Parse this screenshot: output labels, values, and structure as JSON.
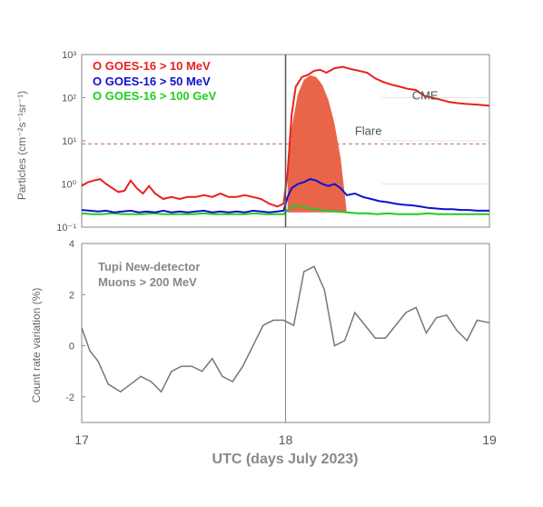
{
  "chart_data": [
    {
      "type": "line",
      "panel": "top",
      "ylabel": "Particles (cm⁻²s⁻¹sr⁻¹)",
      "yscale": "log",
      "ylim": [
        0.1,
        1000
      ],
      "xlim": [
        17,
        19
      ],
      "ytick_labels": [
        "10⁻¹",
        "10⁰",
        "10¹",
        "10²",
        "10³"
      ],
      "ytick_values": [
        0.1,
        1,
        10,
        100,
        1000
      ],
      "legend": {
        "position": "top-left",
        "entries": [
          "O GOES-16 > 10 MeV",
          "O GOES-16 > 50 MeV",
          "O GOES-16 > 100 GeV"
        ]
      },
      "annotations": [
        {
          "text": "CME",
          "x": 18.62,
          "y": 90
        },
        {
          "text": "Flare",
          "x": 18.34,
          "y": 8.5
        }
      ],
      "threshold": {
        "y": 8.5,
        "style": "dashed"
      },
      "event_line_x": 18.0,
      "colors": {
        "series_10": "#e8211c",
        "series_50": "#1010d0",
        "series_100": "#22cc22",
        "flare_fill": "#e8654a"
      },
      "series": [
        {
          "legend_index": 0,
          "x": [
            17.0,
            17.03,
            17.06,
            17.09,
            17.12,
            17.15,
            17.18,
            17.21,
            17.24,
            17.27,
            17.3,
            17.33,
            17.36,
            17.4,
            17.44,
            17.48,
            17.52,
            17.56,
            17.6,
            17.64,
            17.68,
            17.72,
            17.76,
            17.8,
            17.84,
            17.88,
            17.92,
            17.96,
            17.99,
            18.01,
            18.03,
            18.05,
            18.08,
            18.11,
            18.14,
            18.17,
            18.2,
            18.24,
            18.28,
            18.32,
            18.36,
            18.4,
            18.44,
            18.48,
            18.52,
            18.56,
            18.6,
            18.64,
            18.68,
            18.72,
            18.76,
            18.8,
            18.84,
            18.88,
            18.92,
            18.96,
            19.0
          ],
          "values": [
            0.9,
            1.1,
            1.2,
            1.3,
            1.0,
            0.8,
            0.65,
            0.7,
            1.2,
            0.8,
            0.6,
            0.9,
            0.6,
            0.45,
            0.5,
            0.45,
            0.5,
            0.5,
            0.55,
            0.5,
            0.6,
            0.5,
            0.5,
            0.55,
            0.5,
            0.45,
            0.35,
            0.3,
            0.35,
            1.8,
            40,
            180,
            300,
            340,
            420,
            440,
            380,
            480,
            520,
            460,
            420,
            380,
            280,
            230,
            200,
            180,
            160,
            150,
            110,
            100,
            90,
            80,
            75,
            72,
            70,
            68,
            65
          ]
        },
        {
          "legend_index": 1,
          "x": [
            17.0,
            17.04,
            17.08,
            17.12,
            17.16,
            17.2,
            17.24,
            17.28,
            17.32,
            17.36,
            17.4,
            17.44,
            17.48,
            17.52,
            17.56,
            17.6,
            17.64,
            17.68,
            17.72,
            17.76,
            17.8,
            17.84,
            17.88,
            17.92,
            17.96,
            17.99,
            18.01,
            18.03,
            18.06,
            18.09,
            18.12,
            18.15,
            18.18,
            18.21,
            18.24,
            18.27,
            18.3,
            18.34,
            18.38,
            18.42,
            18.46,
            18.5,
            18.54,
            18.58,
            18.62,
            18.66,
            18.7,
            18.74,
            18.78,
            18.82,
            18.86,
            18.9,
            18.94,
            18.98,
            19.0
          ],
          "values": [
            0.25,
            0.24,
            0.23,
            0.24,
            0.22,
            0.23,
            0.24,
            0.22,
            0.23,
            0.22,
            0.24,
            0.22,
            0.23,
            0.22,
            0.23,
            0.24,
            0.22,
            0.23,
            0.22,
            0.23,
            0.22,
            0.24,
            0.23,
            0.22,
            0.23,
            0.24,
            0.5,
            0.8,
            1.0,
            1.1,
            1.3,
            1.2,
            1.0,
            0.9,
            1.0,
            0.8,
            0.55,
            0.6,
            0.5,
            0.45,
            0.4,
            0.38,
            0.35,
            0.33,
            0.32,
            0.3,
            0.28,
            0.27,
            0.26,
            0.26,
            0.25,
            0.25,
            0.24,
            0.24,
            0.24
          ]
        },
        {
          "legend_index": 2,
          "x": [
            17.0,
            17.05,
            17.1,
            17.15,
            17.2,
            17.25,
            17.3,
            17.35,
            17.4,
            17.45,
            17.5,
            17.55,
            17.6,
            17.65,
            17.7,
            17.75,
            17.8,
            17.85,
            17.9,
            17.95,
            17.99,
            18.02,
            18.05,
            18.08,
            18.11,
            18.14,
            18.17,
            18.2,
            18.25,
            18.3,
            18.35,
            18.4,
            18.45,
            18.5,
            18.55,
            18.6,
            18.65,
            18.7,
            18.75,
            18.8,
            18.85,
            18.9,
            18.95,
            19.0
          ],
          "values": [
            0.21,
            0.2,
            0.2,
            0.21,
            0.2,
            0.2,
            0.2,
            0.21,
            0.2,
            0.2,
            0.2,
            0.2,
            0.21,
            0.2,
            0.2,
            0.2,
            0.2,
            0.21,
            0.2,
            0.2,
            0.2,
            0.28,
            0.32,
            0.3,
            0.28,
            0.26,
            0.25,
            0.24,
            0.23,
            0.22,
            0.21,
            0.21,
            0.2,
            0.21,
            0.2,
            0.2,
            0.2,
            0.21,
            0.2,
            0.2,
            0.2,
            0.2,
            0.2,
            0.2
          ]
        }
      ],
      "flare_region": {
        "x": [
          18.01,
          18.03,
          18.06,
          18.09,
          18.12,
          18.15,
          18.18,
          18.21,
          18.24,
          18.27,
          18.3
        ],
        "values": [
          1.5,
          20,
          120,
          260,
          330,
          300,
          200,
          90,
          25,
          4,
          0.22
        ]
      }
    },
    {
      "type": "line",
      "panel": "bottom",
      "ylabel": "Count rate variation (%)",
      "xlabel": "UTC (days July 2023)",
      "xlim": [
        17,
        19
      ],
      "ylim": [
        -3,
        4
      ],
      "ytick_labels": [
        "-2",
        "0",
        "2",
        "4"
      ],
      "ytick_values": [
        -2,
        0,
        2,
        4
      ],
      "xtick_labels": [
        "17",
        "18",
        "19"
      ],
      "xtick_values": [
        17,
        18,
        19
      ],
      "annotation_lines": [
        "Tupi New-detector",
        "Muons > 200 MeV"
      ],
      "event_line_x": 18.0,
      "colors": {
        "series": "#777777"
      },
      "series": [
        {
          "x": [
            17.0,
            17.04,
            17.08,
            17.13,
            17.19,
            17.24,
            17.29,
            17.34,
            17.39,
            17.44,
            17.49,
            17.54,
            17.59,
            17.64,
            17.69,
            17.74,
            17.79,
            17.84,
            17.89,
            17.94,
            17.99,
            18.04,
            18.09,
            18.14,
            18.19,
            18.24,
            18.29,
            18.34,
            18.39,
            18.44,
            18.49,
            18.54,
            18.59,
            18.64,
            18.69,
            18.74,
            18.79,
            18.84,
            18.89,
            18.94,
            19.0
          ],
          "values": [
            0.7,
            -0.2,
            -0.6,
            -1.5,
            -1.8,
            -1.5,
            -1.2,
            -1.4,
            -1.8,
            -1.0,
            -0.8,
            -0.8,
            -1.0,
            -0.5,
            -1.2,
            -1.4,
            -0.8,
            0.0,
            0.8,
            1.0,
            1.0,
            0.8,
            2.9,
            3.1,
            2.2,
            0.0,
            0.2,
            1.3,
            0.8,
            0.3,
            0.3,
            0.8,
            1.3,
            1.5,
            0.5,
            1.1,
            1.2,
            0.6,
            0.2,
            1.0,
            0.9
          ]
        }
      ]
    }
  ]
}
